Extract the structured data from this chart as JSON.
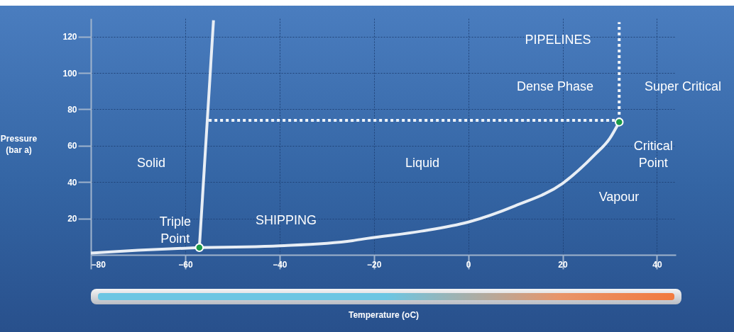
{
  "chart_data": {
    "type": "line",
    "xlabel": "Temperature (oC)",
    "ylabel": "Pressure\n(bar a)",
    "xlim": [
      -80,
      44
    ],
    "ylim": [
      0,
      130
    ],
    "xticks": [
      -80,
      -60,
      -40,
      -20,
      0,
      20,
      40
    ],
    "yticks": [
      20,
      40,
      60,
      80,
      100,
      120
    ],
    "grid": true,
    "series": [
      {
        "color": "#e8eef5",
        "x": [
          -80,
          -70,
          -57
        ],
        "values": [
          1,
          2.5,
          4
        ]
      },
      {
        "color": "#e8eef5",
        "x": [
          -57,
          -54
        ],
        "values": [
          4,
          129
        ]
      },
      {
        "color": "#e8eef5",
        "x": [
          -57,
          -40,
          -24.5,
          -21.5,
          -10,
          0,
          10,
          20,
          26.8,
          30,
          32
        ],
        "values": [
          4,
          5,
          7.8,
          9,
          13,
          18,
          27,
          39.3,
          55,
          64,
          73
        ]
      },
      {
        "color": "#f2f5f9",
        "line_style": "dotted",
        "x": [
          -55,
          32
        ],
        "values": [
          74,
          74
        ]
      },
      {
        "color": "#f2f5f9",
        "line_style": "dotted",
        "x": [
          32,
          32
        ],
        "values": [
          74,
          128
        ]
      },
      {
        "type": "scatter",
        "marker": "circle",
        "color": "#1a9a48",
        "x": [
          -57,
          32
        ],
        "values": [
          4,
          73
        ]
      }
    ],
    "annotations": [
      "PIPELINES",
      "Dense Phase",
      "Super Critical",
      {
        "text": "Critical\nPoint",
        "x": 32,
        "y": 73
      },
      "Solid",
      "Liquid",
      "Vapour",
      {
        "text": "Triple\nPoint",
        "x": -57,
        "y": 4
      },
      "SHIPPING"
    ]
  }
}
